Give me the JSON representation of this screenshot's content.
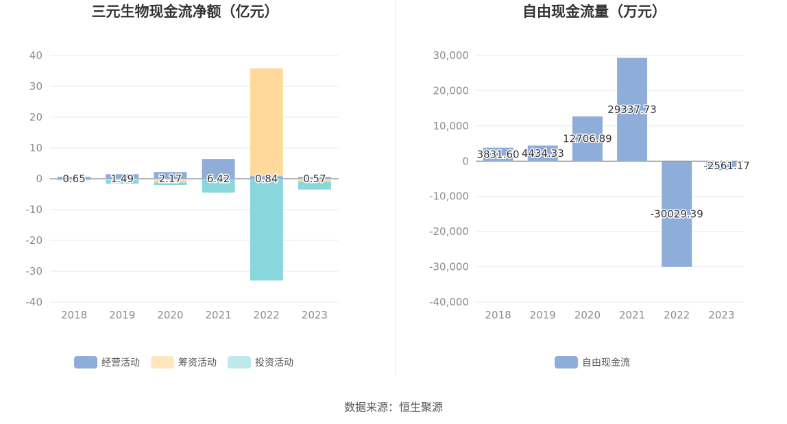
{
  "chart_data": [
    {
      "type": "bar",
      "stacked": true,
      "title": "三元生物现金流净额（亿元）",
      "categories": [
        "2018",
        "2019",
        "2020",
        "2021",
        "2022",
        "2023"
      ],
      "y_ticks": [
        "40",
        "30",
        "20",
        "10",
        "0",
        "-10",
        "-20",
        "-30",
        "-40"
      ],
      "ylim": [
        -40,
        40
      ],
      "series": [
        {
          "name": "经营活动",
          "color": "#8eadd9",
          "values": [
            0.65,
            1.49,
            2.17,
            6.42,
            0.84,
            0.57
          ],
          "labels": [
            "0.65",
            "1.49",
            "2.17",
            "6.42",
            "0.84",
            "0.57"
          ]
        },
        {
          "name": "筹资活动",
          "color": "#ffd99b",
          "values": [
            0,
            -0.3,
            -1.2,
            0,
            35,
            -1.0
          ]
        },
        {
          "name": "投资活动",
          "color": "#89d7dc",
          "values": [
            -0.5,
            -1.3,
            -0.8,
            -4.5,
            -33,
            -2.5
          ]
        }
      ],
      "legend": [
        {
          "name": "经营活动",
          "color": "#8eadd9"
        },
        {
          "name": "筹资活动",
          "color": "#ffe6bf"
        },
        {
          "name": "投资活动",
          "color": "#bde9ec"
        }
      ],
      "legend_position": "bottom"
    },
    {
      "type": "bar",
      "title": "自由现金流量（万元）",
      "categories": [
        "2018",
        "2019",
        "2020",
        "2021",
        "2022",
        "2023"
      ],
      "y_ticks": [
        "30,000",
        "20,000",
        "10,000",
        "0",
        "-10,000",
        "-20,000",
        "-30,000",
        "-40,000"
      ],
      "ylim": [
        -40000,
        30000
      ],
      "series": [
        {
          "name": "自由现金流",
          "color": "#8eadd9",
          "values": [
            3831.6,
            4434.33,
            12706.89,
            29337.73,
            -30029.39,
            -2561.17
          ],
          "labels": [
            "3831.60",
            "4434.33",
            "12706.89",
            "29337.73",
            "-30029.39",
            "-2561.17"
          ]
        }
      ],
      "legend": [
        {
          "name": "自由现金流",
          "color": "#8eadd9"
        }
      ],
      "legend_position": "bottom"
    }
  ],
  "source": "数据来源：恒生聚源"
}
